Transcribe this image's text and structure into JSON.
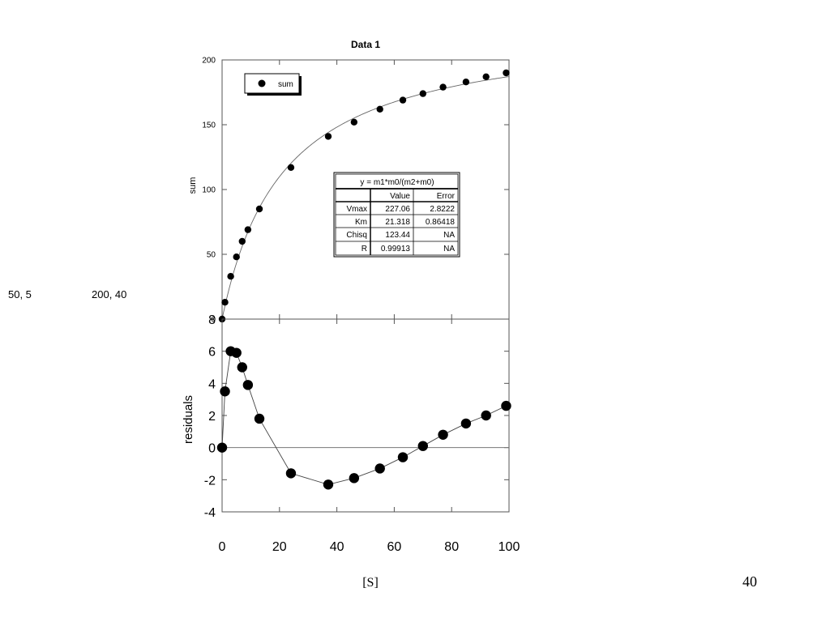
{
  "page": {
    "corner_left": "50, 5",
    "corner_right": "200, 40",
    "page_number": "40"
  },
  "chart_data": [
    {
      "type": "scatter",
      "title": "Data 1",
      "xlabel": "",
      "ylabel": "sum",
      "xlim": [
        0,
        100
      ],
      "ylim": [
        0,
        200
      ],
      "yticks": [
        "0",
        "50",
        "100",
        "150",
        "200"
      ],
      "grid": false,
      "legend": {
        "position": "top-left",
        "entries": [
          "sum"
        ]
      },
      "series": [
        {
          "name": "sum",
          "x": [
            0,
            1,
            3,
            5,
            7,
            9,
            13,
            24,
            37,
            46,
            55,
            63,
            70,
            77,
            85,
            92,
            99
          ],
          "y": [
            0,
            13,
            33,
            48,
            60,
            69,
            85,
            117,
            141,
            152,
            162,
            169,
            174,
            179,
            183,
            187,
            190
          ]
        }
      ],
      "fit": {
        "equation": "y = m1*m0/(m2+m0)",
        "m1": 227.06,
        "m2": 21.318
      },
      "fit_table": {
        "header": [
          "",
          "Value",
          "Error"
        ],
        "rows": [
          [
            "Vmax",
            "227.06",
            "2.8222"
          ],
          [
            "Km",
            "21.318",
            "0.86418"
          ],
          [
            "Chisq",
            "123.44",
            "NA"
          ],
          [
            "R",
            "0.99913",
            "NA"
          ]
        ]
      }
    },
    {
      "type": "line",
      "title": "",
      "xlabel": "[S]",
      "ylabel": "residuals",
      "xlim": [
        0,
        100
      ],
      "ylim": [
        -4,
        8
      ],
      "xticks": [
        "0",
        "20",
        "40",
        "60",
        "80",
        "100"
      ],
      "yticks": [
        "-4",
        "-2",
        "0",
        "2",
        "4",
        "6",
        "8"
      ],
      "grid": false,
      "series": [
        {
          "x": [
            0,
            1,
            3,
            5,
            7,
            9,
            13,
            24,
            37,
            46,
            55,
            63,
            70,
            77,
            85,
            92,
            99
          ],
          "y": [
            0,
            3.5,
            6,
            5.9,
            5,
            3.9,
            1.8,
            -1.6,
            -2.3,
            -1.9,
            -1.3,
            -0.6,
            0.1,
            0.8,
            1.5,
            2,
            2.6
          ]
        }
      ]
    }
  ]
}
